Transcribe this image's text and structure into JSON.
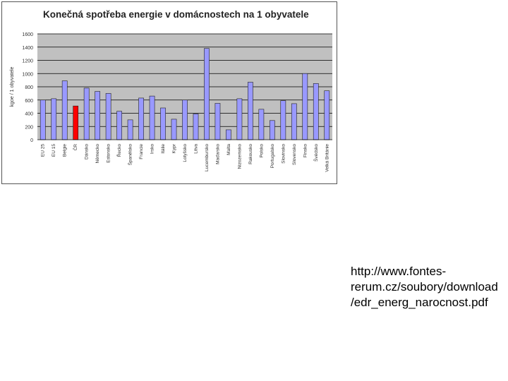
{
  "chart_data": {
    "type": "bar",
    "title": "Konečná spotřeba energie v domácnostech na 1 obyvatele",
    "ylabel": "kgoe / 1 obyvatele",
    "xlabel": "",
    "ylim": [
      0,
      1600
    ],
    "yticks": [
      0,
      200,
      400,
      600,
      800,
      1000,
      1200,
      1400,
      1600
    ],
    "ytick_labels": [
      "0",
      "200",
      "400",
      "600",
      "800",
      "1000",
      "1200",
      "1400",
      "1600"
    ],
    "grid": true,
    "legend": "none",
    "categories": [
      "EU 25",
      "EU 15",
      "Belgie",
      "ČR",
      "Dánsko",
      "Německo",
      "Estonsko",
      "Řecko",
      "Španělsko",
      "Francie",
      "Irsko",
      "Itálie",
      "Kypr",
      "Lotyšsko",
      "Litva",
      "Lucembursko",
      "Maďarsko",
      "Malta",
      "Nizozemsko",
      "Rakousko",
      "Polsko",
      "Portugalsko",
      "Slovinsko",
      "Slovensko",
      "Finsko",
      "Švédsko",
      "Velká Británie"
    ],
    "values": [
      600,
      620,
      890,
      510,
      780,
      730,
      700,
      430,
      300,
      630,
      660,
      480,
      310,
      600,
      390,
      1380,
      550,
      150,
      620,
      870,
      460,
      290,
      590,
      545,
      1000,
      850,
      740
    ],
    "highlight_category": "ČR",
    "colors": {
      "bar": "#9999ff",
      "highlight": "#ff0000",
      "plot_bg": "#c0c0c0",
      "grid": "#000000"
    }
  },
  "source_note": "http://www.fontes-rerum.cz/soubory/download/edr_energ_narocnost.pdf"
}
